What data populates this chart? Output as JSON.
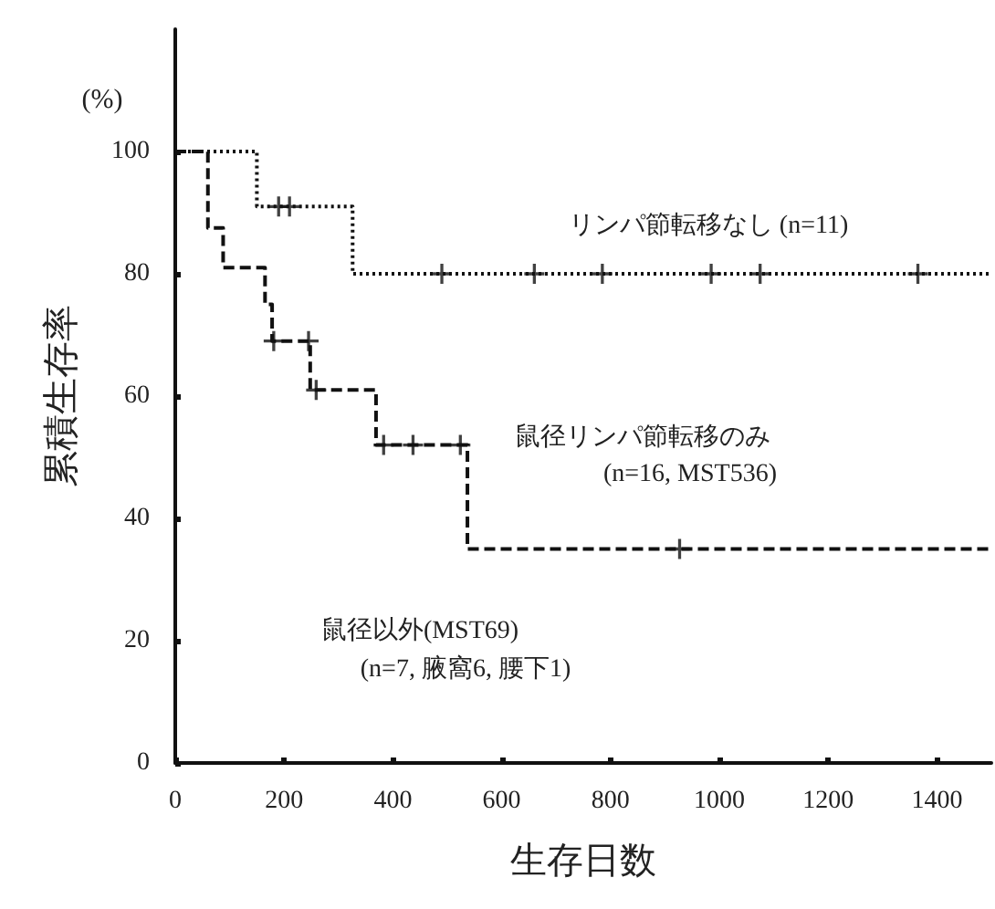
{
  "chart_data": {
    "type": "step",
    "xlabel": "生存日数",
    "ylabel": "累積生存率",
    "xlim": [
      0,
      1500
    ],
    "xticks": [
      0,
      200,
      400,
      600,
      800,
      1000,
      1200,
      1400
    ],
    "ylim": [
      0,
      120
    ],
    "yticks": [
      0,
      20,
      40,
      60,
      80,
      100
    ],
    "grid": false,
    "series": [
      {
        "color": "#111111",
        "line_style": "dotted",
        "marker": "none",
        "x": [
          0,
          150,
          326,
          1500
        ],
        "values": [
          100,
          91,
          80,
          80
        ]
      },
      {
        "type": "scatter",
        "color": "#111111",
        "marker": "cross",
        "x": [
          190,
          210,
          490,
          660,
          785,
          985,
          1075,
          1365
        ],
        "values": [
          91,
          91,
          80,
          80,
          80,
          80,
          80,
          80
        ]
      },
      {
        "color": "#111111",
        "line_style": "dashed",
        "marker": "none",
        "x": [
          0,
          60,
          88,
          165,
          178,
          248,
          369,
          537,
          1500
        ],
        "values": [
          100,
          87.5,
          81,
          75,
          69,
          61,
          52,
          35,
          35
        ]
      },
      {
        "type": "scatter",
        "color": "#111111",
        "marker": "cross",
        "x": [
          181,
          245,
          259,
          383,
          437,
          524,
          927
        ],
        "values": [
          69,
          69,
          61,
          52,
          52,
          52,
          35
        ]
      }
    ],
    "annotations": [
      "(%)",
      "リンパ節転移なし (n=11)",
      "鼠径リンパ節転移のみ",
      "(n=16, MST536)",
      "鼠径以外(MST69)",
      "(n=7, 腋窩6, 腰下1)"
    ]
  }
}
